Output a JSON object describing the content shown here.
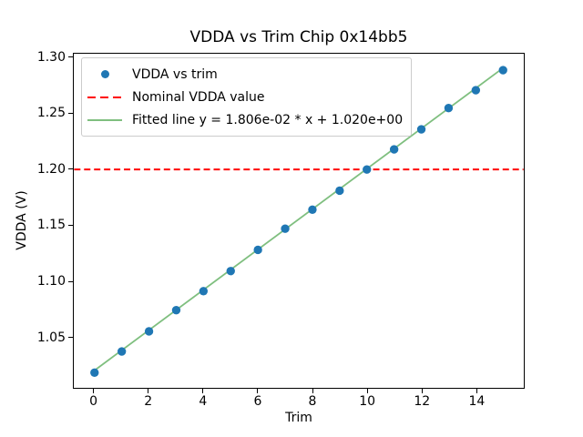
{
  "figure": {
    "title": "VDDA vs Trim Chip 0x14bb5"
  },
  "chart_data": {
    "type": "scatter",
    "title": "VDDA vs Trim Chip 0x14bb5",
    "xlabel": "Trim",
    "ylabel": "VDDA (V)",
    "x": [
      0,
      1,
      2,
      3,
      4,
      5,
      6,
      7,
      8,
      9,
      10,
      11,
      12,
      13,
      14,
      15
    ],
    "series": [
      {
        "name": "VDDA vs trim",
        "type": "scatter",
        "color": "#1f77b4",
        "values": [
          1.018,
          1.037,
          1.055,
          1.074,
          1.091,
          1.109,
          1.128,
          1.147,
          1.164,
          1.181,
          1.2,
          1.218,
          1.236,
          1.255,
          1.271,
          1.289
        ]
      },
      {
        "name": "Nominal VDDA value",
        "type": "hline",
        "color": "#ff0000",
        "y": 1.2,
        "linestyle": "dashed"
      },
      {
        "name": "Fitted line y = 1.806e-02 * x + 1.020e+00",
        "type": "line",
        "color": "#7fbf7f",
        "slope": 0.01806,
        "intercept": 1.02
      }
    ],
    "xlim": [
      -0.75,
      15.75
    ],
    "ylim": [
      1.0044,
      1.3037
    ],
    "xticks": [
      0,
      2,
      4,
      6,
      8,
      10,
      12,
      14
    ],
    "xtick_labels": [
      "0",
      "2",
      "4",
      "6",
      "8",
      "10",
      "12",
      "14"
    ],
    "yticks": [
      1.05,
      1.1,
      1.15,
      1.2,
      1.25,
      1.3
    ],
    "ytick_labels": [
      "1.05",
      "1.10",
      "1.15",
      "1.20",
      "1.25",
      "1.30"
    ],
    "grid": false,
    "legend_position": "upper left"
  },
  "legend": {
    "items": [
      {
        "label": "VDDA vs trim",
        "marker": "dot",
        "color": "#1f77b4"
      },
      {
        "label": "Nominal VDDA value",
        "marker": "dashed-line",
        "color": "#ff0000"
      },
      {
        "label": "Fitted line y = 1.806e-02 * x + 1.020e+00",
        "marker": "line",
        "color": "#7fbf7f"
      }
    ]
  },
  "colors": {
    "scatter_point": "#1f77b4",
    "nominal_line": "#ff0000",
    "fitted_line": "#7fbf7f",
    "background": "#ffffff",
    "text": "#000000",
    "legend_border": "#cccccc"
  }
}
